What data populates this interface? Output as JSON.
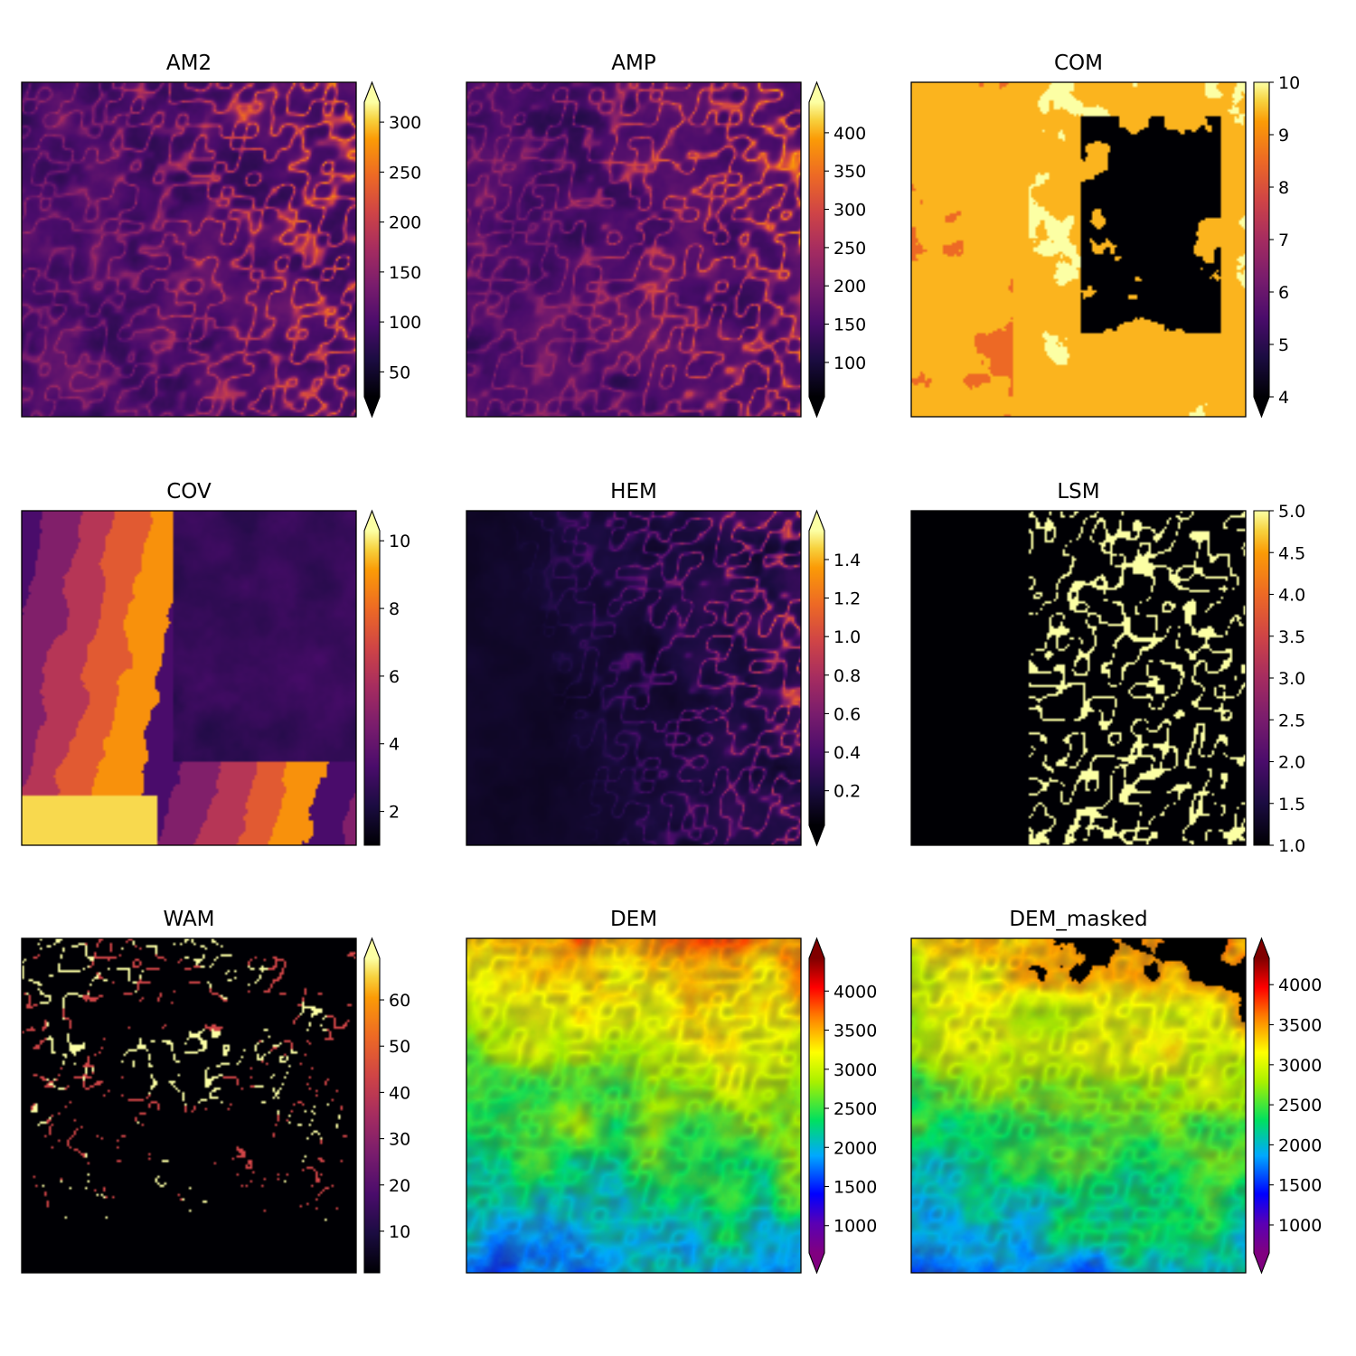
{
  "figure": {
    "panels": [
      {
        "title": "AM2",
        "cmap": "inferno",
        "extend": "both",
        "texture": "amp",
        "vmin": 25,
        "vmax": 320
      },
      {
        "title": "AMP",
        "cmap": "inferno",
        "extend": "both",
        "texture": "amp",
        "vmin": 55,
        "vmax": 440
      },
      {
        "title": "COM",
        "cmap": "inferno",
        "extend": "min",
        "texture": "com",
        "vmin": 4,
        "vmax": 10
      },
      {
        "title": "COV",
        "cmap": "inferno",
        "extend": "max",
        "texture": "cov",
        "vmin": 1,
        "vmax": 10.3
      },
      {
        "title": "HEM",
        "cmap": "inferno",
        "extend": "both",
        "texture": "hem",
        "vmin": 0.02,
        "vmax": 1.55
      },
      {
        "title": "LSM",
        "cmap": "inferno",
        "extend": "none",
        "texture": "lsm",
        "vmin": 1.0,
        "vmax": 5.0
      },
      {
        "title": "WAM",
        "cmap": "inferno",
        "extend": "max",
        "texture": "wam",
        "vmin": 1,
        "vmax": 69
      },
      {
        "title": "DEM",
        "cmap": "spectral_rainbow",
        "extend": "both",
        "texture": "dem",
        "vmin": 650,
        "vmax": 4420
      },
      {
        "title": "DEM_masked",
        "cmap": "spectral_rainbow",
        "extend": "both",
        "texture": "dem_masked",
        "vmin": 650,
        "vmax": 4330
      }
    ]
  },
  "chart_data": [
    {
      "type": "heatmap",
      "title": "AM2",
      "colorbar_ticks": [
        "50",
        "100",
        "150",
        "200",
        "250",
        "300"
      ]
    },
    {
      "type": "heatmap",
      "title": "AMP",
      "colorbar_ticks": [
        "100",
        "150",
        "200",
        "250",
        "300",
        "350",
        "400"
      ]
    },
    {
      "type": "heatmap",
      "title": "COM",
      "colorbar_ticks": [
        "4",
        "5",
        "6",
        "7",
        "8",
        "9",
        "10"
      ]
    },
    {
      "type": "heatmap",
      "title": "COV",
      "colorbar_ticks": [
        "2",
        "4",
        "6",
        "8",
        "10"
      ]
    },
    {
      "type": "heatmap",
      "title": "HEM",
      "colorbar_ticks": [
        "0.2",
        "0.4",
        "0.6",
        "0.8",
        "1.0",
        "1.2",
        "1.4"
      ]
    },
    {
      "type": "heatmap",
      "title": "LSM",
      "colorbar_ticks": [
        "1.0",
        "1.5",
        "2.0",
        "2.5",
        "3.0",
        "3.5",
        "4.0",
        "4.5",
        "5.0"
      ]
    },
    {
      "type": "heatmap",
      "title": "WAM",
      "colorbar_ticks": [
        "10",
        "20",
        "30",
        "40",
        "50",
        "60"
      ]
    },
    {
      "type": "heatmap",
      "title": "DEM",
      "colorbar_ticks": [
        "1000",
        "1500",
        "2000",
        "2500",
        "3000",
        "3500",
        "4000"
      ]
    },
    {
      "type": "heatmap",
      "title": "DEM_masked",
      "colorbar_ticks": [
        "1000",
        "1500",
        "2000",
        "2500",
        "3000",
        "3500",
        "4000"
      ]
    }
  ]
}
